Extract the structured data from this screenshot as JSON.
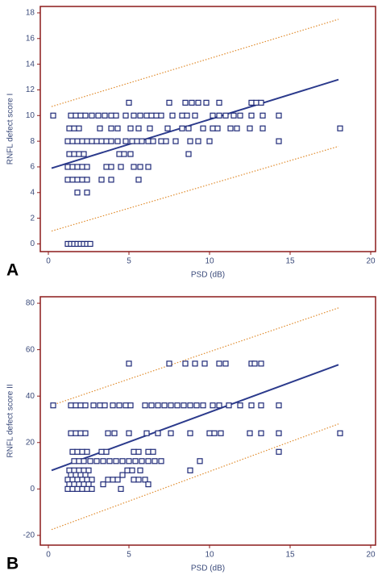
{
  "chart_data": [
    {
      "type": "scatter",
      "panel": "A",
      "xlabel": "PSD (dB)",
      "ylabel": "RNFL defect score I",
      "xlim": [
        -0.5,
        20.3
      ],
      "ylim": [
        -0.6,
        18.5
      ],
      "xticks": [
        0,
        5,
        10,
        15,
        20
      ],
      "yticks": [
        0,
        2,
        4,
        6,
        8,
        10,
        12,
        14,
        16,
        18
      ],
      "series": [
        {
          "color": "#1f2a78",
          "x": [
            1.2,
            1.4,
            1.6,
            1.8,
            2.0,
            2.2,
            2.4,
            2.6,
            1.8,
            2.4,
            1.2,
            1.5,
            1.8,
            2.1,
            2.4,
            3.3,
            3.9,
            5.6,
            1.2,
            1.5,
            1.8,
            2.1,
            2.4,
            3.6,
            3.9,
            4.5,
            5.3,
            5.7,
            6.2,
            1.3,
            1.6,
            1.9,
            2.2,
            4.4,
            4.7,
            5.1,
            8.7,
            1.2,
            1.5,
            1.8,
            2.1,
            2.4,
            2.7,
            3.0,
            3.3,
            3.6,
            3.9,
            4.3,
            4.8,
            5.2,
            5.5,
            5.8,
            6.2,
            6.5,
            7.0,
            7.3,
            7.9,
            8.8,
            9.3,
            10.0,
            14.3,
            1.3,
            1.6,
            1.9,
            3.2,
            3.9,
            4.3,
            5.1,
            5.6,
            6.3,
            7.4,
            8.3,
            8.7,
            9.6,
            10.2,
            10.5,
            11.3,
            11.7,
            12.5,
            13.3,
            18.1,
            0.3,
            1.4,
            1.7,
            2.0,
            2.3,
            2.7,
            3.1,
            3.5,
            3.9,
            4.2,
            4.8,
            5.3,
            5.7,
            6.1,
            6.4,
            6.7,
            7.0,
            7.7,
            8.3,
            8.6,
            9.1,
            10.2,
            10.6,
            11.0,
            11.5,
            11.9,
            12.6,
            13.3,
            14.3,
            5.0,
            7.5,
            8.5,
            8.9,
            9.3,
            9.8,
            10.6,
            12.6,
            12.9,
            13.2
          ],
          "values": [
            0,
            0,
            0,
            0,
            0,
            0,
            0,
            0,
            4,
            4,
            5,
            5,
            5,
            5,
            5,
            5,
            5,
            5,
            6,
            6,
            6,
            6,
            6,
            6,
            6,
            6,
            6,
            6,
            6,
            7,
            7,
            7,
            7,
            7,
            7,
            7,
            7,
            8,
            8,
            8,
            8,
            8,
            8,
            8,
            8,
            8,
            8,
            8,
            8,
            8,
            8,
            8,
            8,
            8,
            8,
            8,
            8,
            8,
            8,
            8,
            8,
            9,
            9,
            9,
            9,
            9,
            9,
            9,
            9,
            9,
            9,
            9,
            9,
            9,
            9,
            9,
            9,
            9,
            9,
            9,
            9,
            10,
            10,
            10,
            10,
            10,
            10,
            10,
            10,
            10,
            10,
            10,
            10,
            10,
            10,
            10,
            10,
            10,
            10,
            10,
            10,
            10,
            10,
            10,
            10,
            10,
            10,
            10,
            10,
            10,
            11,
            11,
            11,
            11,
            11,
            11,
            11,
            11,
            11,
            11
          ]
        }
      ],
      "lines": [
        {
          "color": "#2b3a8c",
          "style": "solid",
          "x": [
            0.2,
            18
          ],
          "values": [
            5.9,
            12.8
          ]
        },
        {
          "color": "#e08b2c",
          "style": "dotted",
          "x": [
            0.2,
            18
          ],
          "values": [
            10.7,
            17.5
          ]
        },
        {
          "color": "#e08b2c",
          "style": "dotted",
          "x": [
            0.2,
            18
          ],
          "values": [
            1.0,
            7.6
          ]
        }
      ]
    },
    {
      "type": "scatter",
      "panel": "B",
      "xlabel": "PSD (dB)",
      "ylabel": "RNFL defect score II",
      "xlim": [
        -0.5,
        20.3
      ],
      "ylim": [
        -24.2,
        82.8
      ],
      "xticks": [
        0,
        5,
        10,
        15,
        20
      ],
      "yticks": [
        -20,
        0,
        20,
        40,
        60,
        80
      ],
      "series": [
        {
          "color": "#1f2a78",
          "x": [
            5.0,
            7.5,
            8.5,
            9.1,
            9.7,
            10.6,
            11.0,
            12.6,
            12.8,
            13.2,
            0.3,
            1.4,
            1.7,
            2.0,
            2.3,
            2.8,
            3.2,
            3.5,
            4.0,
            4.4,
            4.8,
            5.1,
            6.0,
            6.4,
            6.8,
            7.2,
            7.6,
            8.0,
            8.4,
            8.8,
            9.2,
            9.6,
            10.2,
            10.6,
            11.2,
            11.9,
            12.6,
            13.2,
            14.3,
            1.4,
            1.7,
            2.0,
            2.3,
            3.7,
            4.1,
            5.0,
            6.1,
            6.8,
            7.6,
            8.8,
            10.0,
            10.3,
            10.7,
            12.5,
            13.2,
            14.3,
            18.1,
            1.5,
            1.8,
            2.1,
            2.4,
            3.3,
            3.6,
            5.3,
            5.6,
            6.2,
            6.5,
            14.3,
            1.6,
            1.9,
            2.2,
            2.6,
            3.0,
            3.4,
            3.8,
            4.2,
            4.6,
            5.0,
            5.4,
            5.8,
            6.2,
            6.6,
            7.0,
            9.4,
            1.3,
            1.6,
            1.9,
            2.2,
            2.5,
            4.9,
            5.2,
            5.7,
            8.8,
            1.4,
            1.7,
            2.0,
            2.3,
            4.6,
            1.2,
            1.5,
            1.8,
            2.1,
            2.4,
            2.7,
            3.7,
            4.0,
            4.3,
            5.3,
            5.6,
            6.0,
            1.3,
            1.6,
            1.9,
            2.2,
            2.5,
            3.4,
            6.2,
            1.2,
            1.5,
            1.8,
            2.1,
            2.4,
            2.7,
            4.5
          ],
          "values": [
            54,
            54,
            54,
            54,
            54,
            54,
            54,
            54,
            54,
            54,
            36,
            36,
            36,
            36,
            36,
            36,
            36,
            36,
            36,
            36,
            36,
            36,
            36,
            36,
            36,
            36,
            36,
            36,
            36,
            36,
            36,
            36,
            36,
            36,
            36,
            36,
            36,
            36,
            36,
            24,
            24,
            24,
            24,
            24,
            24,
            24,
            24,
            24,
            24,
            24,
            24,
            24,
            24,
            24,
            24,
            24,
            24,
            16,
            16,
            16,
            16,
            16,
            16,
            16,
            16,
            16,
            16,
            16,
            12,
            12,
            12,
            12,
            12,
            12,
            12,
            12,
            12,
            12,
            12,
            12,
            12,
            12,
            12,
            12,
            8,
            8,
            8,
            8,
            8,
            8,
            8,
            8,
            8,
            6,
            6,
            6,
            6,
            6,
            4,
            4,
            4,
            4,
            4,
            4,
            4,
            4,
            4,
            4,
            4,
            4,
            2,
            2,
            2,
            2,
            2,
            2,
            2,
            0,
            0,
            0,
            0,
            0,
            0,
            0
          ]
        }
      ],
      "lines": [
        {
          "color": "#2b3a8c",
          "style": "solid",
          "x": [
            0.2,
            18
          ],
          "values": [
            8,
            53.5
          ]
        },
        {
          "color": "#e08b2c",
          "style": "dotted",
          "x": [
            0.2,
            18
          ],
          "values": [
            36,
            78
          ]
        },
        {
          "color": "#e08b2c",
          "style": "dotted",
          "x": [
            0.2,
            18
          ],
          "values": [
            -17.5,
            28
          ]
        }
      ]
    }
  ]
}
